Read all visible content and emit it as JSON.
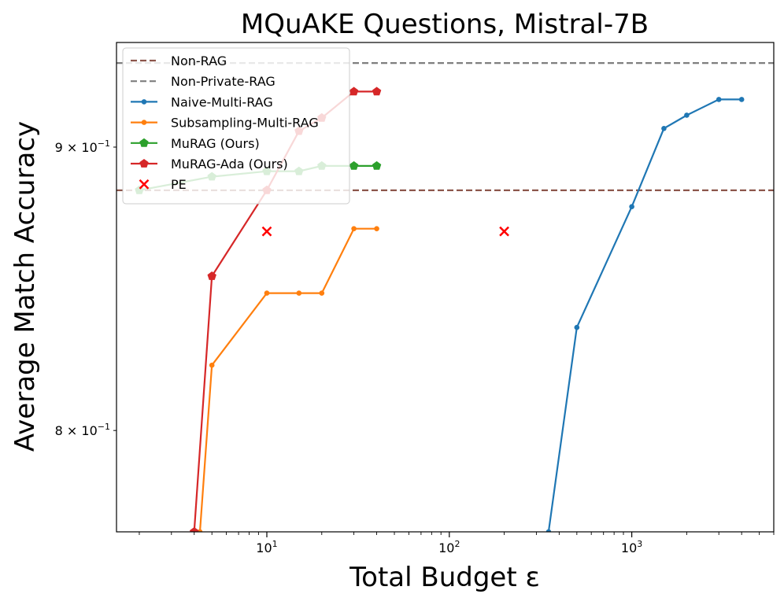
{
  "chart_data": {
    "type": "line",
    "title": "MQuAKE Questions, Mistral-7B",
    "xlabel": "Total Budget ε",
    "ylabel": "Average Match Accuracy",
    "xscale": "log",
    "yscale": "log",
    "xlim": [
      1.5,
      6000
    ],
    "ylim": [
      0.767,
      0.94
    ],
    "x_ticks": [
      {
        "value": 10,
        "base": "10",
        "exp": "1"
      },
      {
        "value": 100,
        "base": "10",
        "exp": "2"
      },
      {
        "value": 1000,
        "base": "10",
        "exp": "3"
      }
    ],
    "y_ticks": [
      {
        "value": 0.8,
        "base": "8 × 10",
        "exp": "−1"
      },
      {
        "value": 0.9,
        "base": "9 × 10",
        "exp": "−1"
      }
    ],
    "legend_position": "top-left",
    "grid": false,
    "reference_lines": [
      {
        "name": "Non-RAG",
        "value": 0.884,
        "color": "#8c564b",
        "style": "dashed"
      },
      {
        "name": "Non-Private-RAG",
        "value": 0.932,
        "color": "#7f7f7f",
        "style": "dashed"
      }
    ],
    "series": [
      {
        "name": "Naive-Multi-RAG",
        "color": "#1f77b4",
        "marker": "circle",
        "x": [
          350,
          500,
          1000,
          1500,
          2000,
          3000,
          4000
        ],
        "y": [
          0.767,
          0.835,
          0.878,
          0.907,
          0.912,
          0.918,
          0.918
        ]
      },
      {
        "name": "Subsampling-Multi-RAG",
        "color": "#ff7f0e",
        "marker": "circle",
        "x": [
          4.3,
          5,
          10,
          15,
          20,
          30,
          40
        ],
        "y": [
          0.767,
          0.822,
          0.847,
          0.847,
          0.847,
          0.87,
          0.87
        ]
      },
      {
        "name": "MuRAG (Ours)",
        "color": "#2ca02c",
        "marker": "pentagon",
        "x": [
          2,
          5,
          10,
          15,
          20,
          30,
          40
        ],
        "y": [
          0.884,
          0.889,
          0.891,
          0.891,
          0.893,
          0.893,
          0.893
        ]
      },
      {
        "name": "MuRAG-Ada (Ours)",
        "color": "#d62728",
        "marker": "pentagon",
        "x": [
          4,
          5,
          10,
          15,
          20,
          30,
          40
        ],
        "y": [
          0.767,
          0.853,
          0.884,
          0.906,
          0.911,
          0.921,
          0.921
        ]
      }
    ],
    "pe_points": {
      "name": "PE",
      "color": "#ff0000",
      "marker": "x",
      "x": [
        10,
        200
      ],
      "y": [
        0.869,
        0.869
      ]
    }
  }
}
